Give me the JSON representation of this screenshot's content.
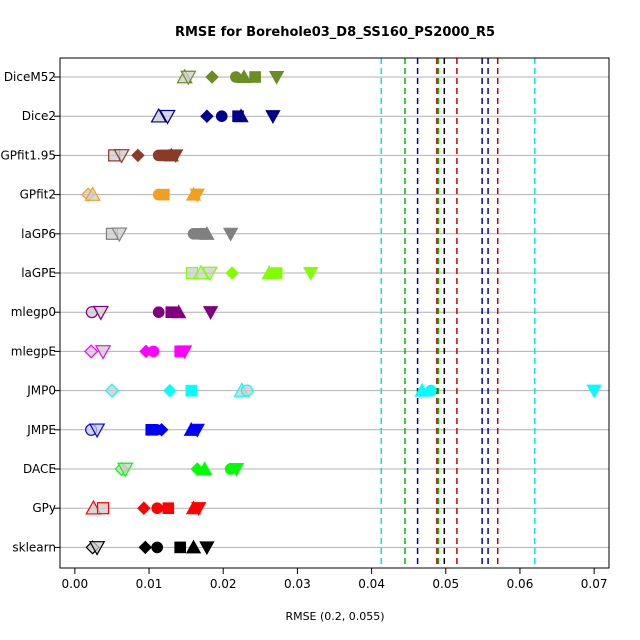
{
  "chart_data": {
    "type": "scatter",
    "title": "RMSE for Borehole03_D8_SS160_PS2000_R5",
    "xlabel": "RMSE (0.2, 0.055)",
    "xlim": [
      -0.002,
      0.072
    ],
    "xticks": [
      "0.00",
      "0.01",
      "0.02",
      "0.03",
      "0.04",
      "0.05",
      "0.06",
      "0.07"
    ],
    "xtick_values": [
      0.0,
      0.01,
      0.02,
      0.03,
      0.04,
      0.05,
      0.06,
      0.07
    ],
    "grid": "horizontal",
    "vlines": [
      {
        "x": 0.0413,
        "color": "#00e5e5"
      },
      {
        "x": 0.062,
        "color": "#00e5e5"
      },
      {
        "x": 0.0445,
        "color": "#00bb00"
      },
      {
        "x": 0.049,
        "color": "#00bb00"
      },
      {
        "x": 0.0462,
        "color": "#0000aa"
      },
      {
        "x": 0.0549,
        "color": "#0000aa"
      },
      {
        "x": 0.0557,
        "color": "#0000aa"
      },
      {
        "x": 0.0488,
        "color": "#cc0000"
      },
      {
        "x": 0.0515,
        "color": "#cc0000"
      },
      {
        "x": 0.057,
        "color": "#cc0000"
      },
      {
        "x": 0.0498,
        "color": "#000000"
      }
    ],
    "rows": [
      {
        "label": "DiceM52",
        "color": "#6b8e23",
        "points": [
          {
            "x": 0.0148,
            "shape": "triangle-up-open"
          },
          {
            "x": 0.0153,
            "shape": "triangle-down-open"
          },
          {
            "x": 0.0185,
            "shape": "diamond"
          },
          {
            "x": 0.0217,
            "shape": "circle"
          },
          {
            "x": 0.0228,
            "shape": "triangle-up"
          },
          {
            "x": 0.0243,
            "shape": "square"
          },
          {
            "x": 0.0272,
            "shape": "triangle-down"
          }
        ]
      },
      {
        "label": "Dice2",
        "color": "#00008b",
        "points": [
          {
            "x": 0.0113,
            "shape": "triangle-up-open"
          },
          {
            "x": 0.0125,
            "shape": "triangle-down-open"
          },
          {
            "x": 0.0178,
            "shape": "diamond"
          },
          {
            "x": 0.0198,
            "shape": "circle"
          },
          {
            "x": 0.022,
            "shape": "square"
          },
          {
            "x": 0.0224,
            "shape": "triangle-up"
          },
          {
            "x": 0.0267,
            "shape": "triangle-down"
          }
        ]
      },
      {
        "label": "GPfit1.95",
        "color": "#8b3a2a",
        "points": [
          {
            "x": 0.0053,
            "shape": "square-open"
          },
          {
            "x": 0.0063,
            "shape": "triangle-down-open"
          },
          {
            "x": 0.0085,
            "shape": "diamond"
          },
          {
            "x": 0.0113,
            "shape": "circle"
          },
          {
            "x": 0.0123,
            "shape": "square"
          },
          {
            "x": 0.013,
            "shape": "triangle-up"
          },
          {
            "x": 0.0136,
            "shape": "triangle-down"
          }
        ]
      },
      {
        "label": "GPfit2",
        "color": "#f0a020",
        "points": [
          {
            "x": 0.0018,
            "shape": "diamond-open"
          },
          {
            "x": 0.0024,
            "shape": "triangle-up-open"
          },
          {
            "x": 0.0113,
            "shape": "circle"
          },
          {
            "x": 0.012,
            "shape": "square"
          },
          {
            "x": 0.016,
            "shape": "triangle-up"
          },
          {
            "x": 0.0165,
            "shape": "triangle-down"
          }
        ]
      },
      {
        "label": "laGP6",
        "color": "#808080",
        "points": [
          {
            "x": 0.005,
            "shape": "square-open"
          },
          {
            "x": 0.006,
            "shape": "triangle-down-open"
          },
          {
            "x": 0.016,
            "shape": "circle"
          },
          {
            "x": 0.017,
            "shape": "square"
          },
          {
            "x": 0.0178,
            "shape": "triangle-up"
          },
          {
            "x": 0.021,
            "shape": "triangle-down"
          }
        ]
      },
      {
        "label": "laGPE",
        "color": "#7fff00",
        "points": [
          {
            "x": 0.0158,
            "shape": "square-open"
          },
          {
            "x": 0.017,
            "shape": "triangle-up-open"
          },
          {
            "x": 0.0182,
            "shape": "triangle-down-open"
          },
          {
            "x": 0.0212,
            "shape": "diamond"
          },
          {
            "x": 0.0262,
            "shape": "triangle-up"
          },
          {
            "x": 0.0272,
            "shape": "square"
          },
          {
            "x": 0.0318,
            "shape": "triangle-down"
          }
        ]
      },
      {
        "label": "mlegp0",
        "color": "#800080",
        "points": [
          {
            "x": 0.0023,
            "shape": "circle-open"
          },
          {
            "x": 0.0035,
            "shape": "triangle-down-open"
          },
          {
            "x": 0.0113,
            "shape": "circle"
          },
          {
            "x": 0.013,
            "shape": "square"
          },
          {
            "x": 0.014,
            "shape": "triangle-up"
          },
          {
            "x": 0.0183,
            "shape": "triangle-down"
          }
        ]
      },
      {
        "label": "mlegpE",
        "color": "#ff00ff",
        "points": [
          {
            "x": 0.0022,
            "shape": "diamond-open"
          },
          {
            "x": 0.0038,
            "shape": "triangle-down-open"
          },
          {
            "x": 0.0096,
            "shape": "diamond"
          },
          {
            "x": 0.0106,
            "shape": "circle"
          },
          {
            "x": 0.0142,
            "shape": "square"
          },
          {
            "x": 0.0148,
            "shape": "triangle-down"
          }
        ]
      },
      {
        "label": "JMP0",
        "color": "#00ffff",
        "points": [
          {
            "x": 0.005,
            "shape": "diamond-open"
          },
          {
            "x": 0.0128,
            "shape": "diamond"
          },
          {
            "x": 0.0157,
            "shape": "square"
          },
          {
            "x": 0.0225,
            "shape": "triangle-up-open"
          },
          {
            "x": 0.0232,
            "shape": "circle-open"
          },
          {
            "x": 0.0468,
            "shape": "triangle-up"
          },
          {
            "x": 0.048,
            "shape": "circle"
          },
          {
            "x": 0.07,
            "shape": "triangle-down"
          }
        ]
      },
      {
        "label": "JMPE",
        "color": "#0000ff",
        "points": [
          {
            "x": 0.0022,
            "shape": "circle-open"
          },
          {
            "x": 0.003,
            "shape": "triangle-down-open"
          },
          {
            "x": 0.0103,
            "shape": "square"
          },
          {
            "x": 0.011,
            "shape": "circle"
          },
          {
            "x": 0.0117,
            "shape": "diamond"
          },
          {
            "x": 0.0157,
            "shape": "triangle-up"
          },
          {
            "x": 0.0165,
            "shape": "triangle-down"
          }
        ]
      },
      {
        "label": "DACE",
        "color": "#00ff00",
        "points": [
          {
            "x": 0.0063,
            "shape": "diamond-open"
          },
          {
            "x": 0.0068,
            "shape": "triangle-down-open"
          },
          {
            "x": 0.0165,
            "shape": "diamond"
          },
          {
            "x": 0.0175,
            "shape": "triangle-up"
          },
          {
            "x": 0.021,
            "shape": "circle"
          },
          {
            "x": 0.0218,
            "shape": "triangle-down"
          }
        ]
      },
      {
        "label": "GPy",
        "color": "#ff0000",
        "points": [
          {
            "x": 0.0025,
            "shape": "triangle-up-open"
          },
          {
            "x": 0.0038,
            "shape": "square-open"
          },
          {
            "x": 0.0093,
            "shape": "diamond"
          },
          {
            "x": 0.0111,
            "shape": "circle"
          },
          {
            "x": 0.0126,
            "shape": "square"
          },
          {
            "x": 0.016,
            "shape": "triangle-up"
          },
          {
            "x": 0.0167,
            "shape": "triangle-down"
          }
        ]
      },
      {
        "label": "sklearn",
        "color": "#000000",
        "points": [
          {
            "x": 0.0024,
            "shape": "diamond-open"
          },
          {
            "x": 0.003,
            "shape": "triangle-down-open"
          },
          {
            "x": 0.0095,
            "shape": "diamond"
          },
          {
            "x": 0.0111,
            "shape": "circle"
          },
          {
            "x": 0.0142,
            "shape": "square"
          },
          {
            "x": 0.016,
            "shape": "triangle-up"
          },
          {
            "x": 0.0178,
            "shape": "triangle-down"
          }
        ]
      }
    ]
  }
}
